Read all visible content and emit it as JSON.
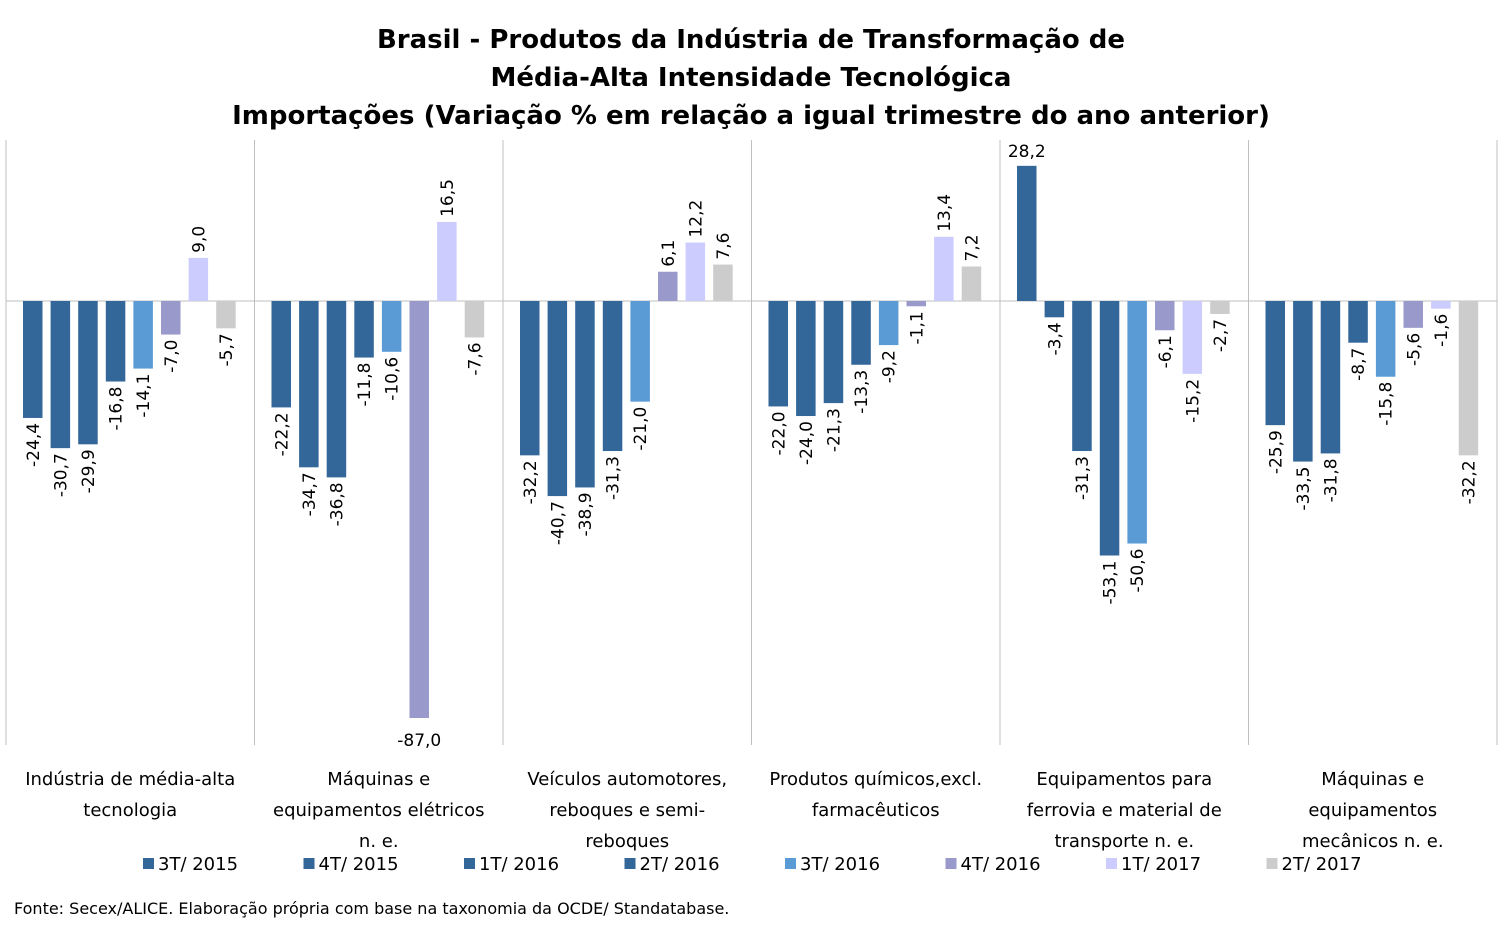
{
  "chart_data": {
    "type": "bar",
    "title": [
      "Brasil - Produtos da Indústria de Transformação de",
      "Média-Alta Intensidade Tecnológica",
      "Importações (Variação % em relação a igual trimestre do ano anterior)"
    ],
    "categories": [
      [
        "Indústria de média-alta",
        "tecnologia"
      ],
      [
        "Máquinas e",
        "equipamentos elétricos",
        "n. e."
      ],
      [
        "Veículos automotores,",
        "reboques e semi-",
        "reboques"
      ],
      [
        "Produtos químicos,excl.",
        "farmacêuticos"
      ],
      [
        "Equipamentos para",
        "ferrovia e material de",
        "transporte n. e."
      ],
      [
        "Máquinas e",
        "equipamentos",
        "mecânicos  n. e."
      ]
    ],
    "series": [
      {
        "name": "3T/ 2015",
        "color": "#336699",
        "values": [
          -24.4,
          -22.2,
          -32.2,
          -22.0,
          28.2,
          -25.9
        ]
      },
      {
        "name": "4T/ 2015",
        "color": "#336699",
        "values": [
          -30.7,
          -34.7,
          -40.7,
          -24.0,
          -3.4,
          -33.5
        ]
      },
      {
        "name": "1T/ 2016",
        "color": "#336699",
        "values": [
          -29.9,
          -36.8,
          -38.9,
          -21.3,
          -31.3,
          -31.8
        ]
      },
      {
        "name": "2T/ 2016",
        "color": "#336699",
        "values": [
          -16.8,
          -11.8,
          -31.3,
          -13.3,
          -53.1,
          -8.7
        ]
      },
      {
        "name": "3T/ 2016",
        "color": "#5B9BD5",
        "values": [
          -14.1,
          -10.6,
          -21.0,
          -9.2,
          -50.6,
          -15.8
        ]
      },
      {
        "name": "4T/ 2016",
        "color": "#9999CC",
        "values": [
          -7.0,
          -87.0,
          6.1,
          -1.1,
          -6.1,
          -5.6
        ]
      },
      {
        "name": "1T/ 2017",
        "color": "#CCCCFF",
        "values": [
          9.0,
          16.5,
          12.2,
          13.4,
          -15.2,
          -1.6
        ]
      },
      {
        "name": "2T/ 2017",
        "color": "#CCCCCC",
        "values": [
          -5.7,
          -7.6,
          7.6,
          7.2,
          -2.7,
          -32.2
        ]
      }
    ],
    "ylim": [
      -93,
      33
    ],
    "legend_position": "bottom",
    "grid": false,
    "decimal_separator": ","
  },
  "source_note": "Fonte: Secex/ALICE. Elaboração própria com base na taxonomia da OCDE/ Standatabase."
}
